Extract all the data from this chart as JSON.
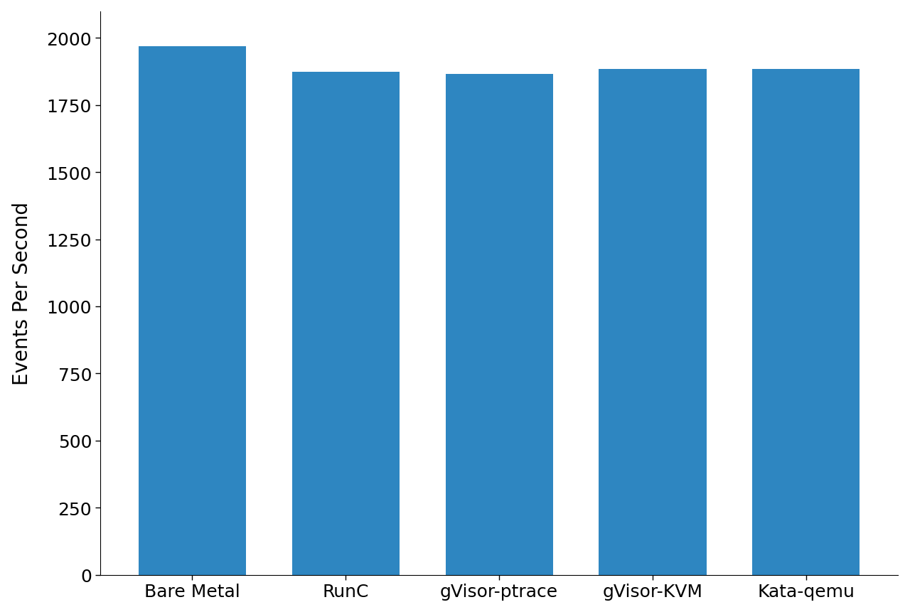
{
  "categories": [
    "Bare Metal",
    "RunC",
    "gVisor-ptrace",
    "gVisor-KVM",
    "Kata-qemu"
  ],
  "values": [
    1970,
    1875,
    1865,
    1885,
    1885
  ],
  "bar_color": "#2e86c1",
  "ylabel": "Events Per Second",
  "ylim": [
    0,
    2100
  ],
  "yticks": [
    0,
    250,
    500,
    750,
    1000,
    1250,
    1500,
    1750,
    2000
  ],
  "background_color": "#ffffff",
  "bar_width": 0.7,
  "tick_fontsize": 18,
  "label_fontsize": 20
}
